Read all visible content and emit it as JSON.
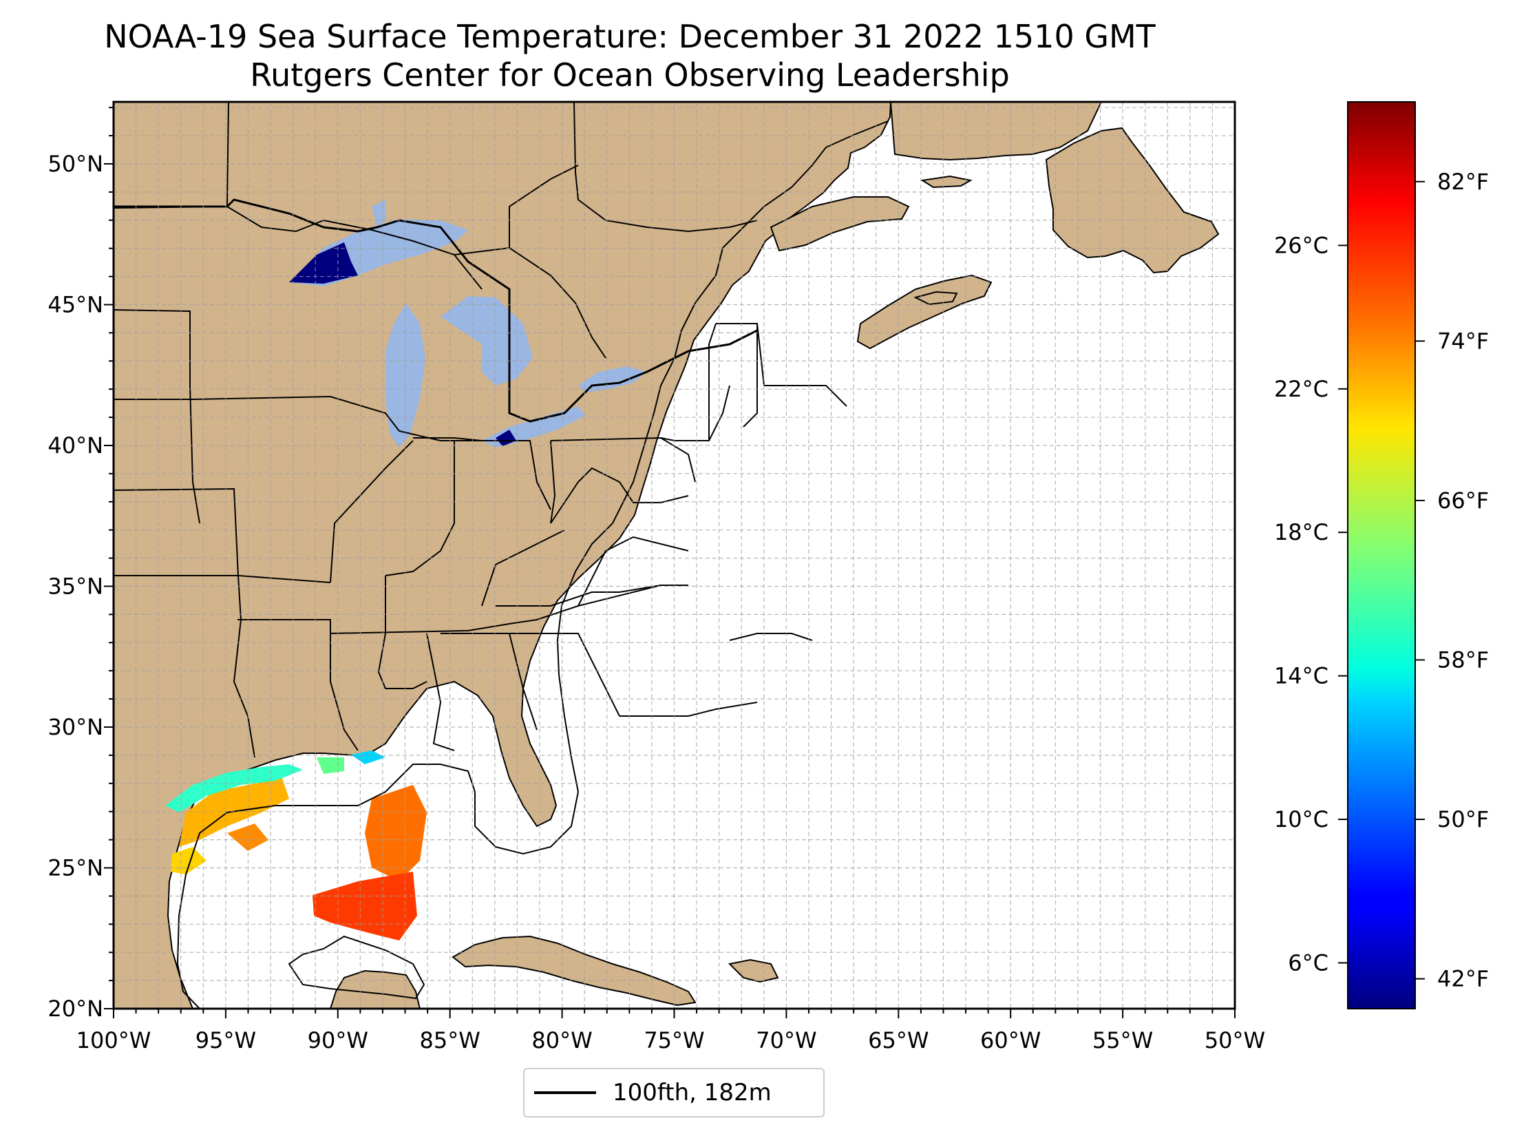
{
  "title": {
    "line1": "NOAA-19 Sea Surface Temperature: December 31 2022 1510 GMT",
    "line2": "Rutgers Center for Ocean Observing Leadership"
  },
  "map": {
    "lon_range": [
      -100,
      -50
    ],
    "lat_range": [
      20,
      52.2
    ],
    "lon_ticks": [
      "100°W",
      "95°W",
      "90°W",
      "85°W",
      "80°W",
      "75°W",
      "70°W",
      "65°W",
      "60°W",
      "55°W",
      "50°W"
    ],
    "lat_ticks": [
      "20°N",
      "25°N",
      "30°N",
      "35°N",
      "40°N",
      "45°N",
      "50°N"
    ],
    "grid": "dashed, 1 degree",
    "land_color": "#d2b48c",
    "lake_color": "#9ab6e2",
    "ocean_color": "#ffffff"
  },
  "legend": {
    "label": "100fth, 182m",
    "placement": "bottom-center"
  },
  "colorbar": {
    "colormap": "jet",
    "celsius_ticks": [
      "26°C",
      "22°C",
      "18°C",
      "14°C",
      "10°C",
      "6°C"
    ],
    "fahrenheit_ticks": [
      "82°F",
      "74°F",
      "66°F",
      "58°F",
      "50°F",
      "42°F"
    ],
    "celsius_values": [
      26,
      22,
      18,
      14,
      10,
      6
    ],
    "fahrenheit_values": [
      82,
      74,
      66,
      58,
      50,
      42
    ],
    "range_f": [
      40.5,
      86
    ]
  }
}
